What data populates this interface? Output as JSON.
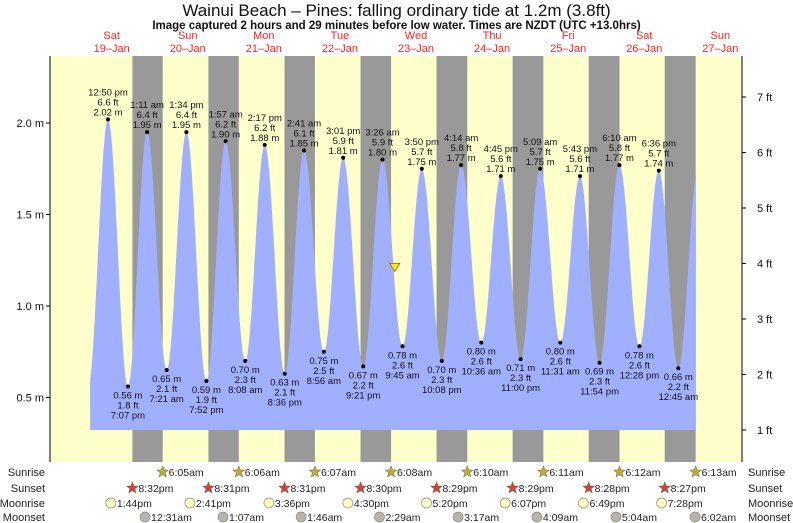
{
  "chart_data": {
    "type": "area",
    "title": "Wainui Beach – Pines: falling  ordinary tide at 1.2m (3.8ft)",
    "subtitle": "Image captured 2 hours and 29 minutes before low water. Times are NZDT (UTC +13.0hrs)",
    "ylabel_left": "m",
    "ylabel_right": "ft",
    "ylim_m": [
      0.26,
      2.42
    ],
    "yticks_m": [
      {
        "v": 2.0,
        "label": "2.0 m"
      },
      {
        "v": 1.5,
        "label": "1.5 m"
      },
      {
        "v": 1.0,
        "label": "1.0 m"
      },
      {
        "v": 0.5,
        "label": "0.5 m"
      }
    ],
    "yticks_ft": [
      {
        "v": 7,
        "label": "7 ft"
      },
      {
        "v": 6,
        "label": "6 ft"
      },
      {
        "v": 5,
        "label": "5 ft"
      },
      {
        "v": 4,
        "label": "4 ft"
      },
      {
        "v": 3,
        "label": "3 ft"
      },
      {
        "v": 2,
        "label": "2 ft"
      },
      {
        "v": 1,
        "label": "1 ft"
      }
    ],
    "days": [
      {
        "dow": "Sat",
        "date": "19–Jan"
      },
      {
        "dow": "Sun",
        "date": "20–Jan"
      },
      {
        "dow": "Mon",
        "date": "21–Jan"
      },
      {
        "dow": "Tue",
        "date": "22–Jan"
      },
      {
        "dow": "Wed",
        "date": "23–Jan"
      },
      {
        "dow": "Thu",
        "date": "24–Jan"
      },
      {
        "dow": "Fri",
        "date": "25–Jan"
      },
      {
        "dow": "Sat",
        "date": "26–Jan"
      },
      {
        "dow": "Sun",
        "date": "27–Jan"
      }
    ],
    "current": {
      "hour": 103.3,
      "m": 1.2
    },
    "extremes": [
      {
        "type": "high",
        "hour": 12.83,
        "time": "12:50 pm",
        "ft": "6.6 ft",
        "m": 2.02
      },
      {
        "type": "low",
        "hour": 19.12,
        "time": "7:07 pm",
        "ft": "1.8 ft",
        "m": 0.56
      },
      {
        "type": "high",
        "hour": 25.18,
        "time": "1:11 am",
        "ft": "6.4 ft",
        "m": 1.95
      },
      {
        "type": "low",
        "hour": 31.35,
        "time": "7:21 am",
        "ft": "2.1 ft",
        "m": 0.65
      },
      {
        "type": "high",
        "hour": 37.57,
        "time": "1:34 pm",
        "ft": "6.4 ft",
        "m": 1.95
      },
      {
        "type": "low",
        "hour": 43.87,
        "time": "7:52 pm",
        "ft": "1.9 ft",
        "m": 0.59
      },
      {
        "type": "high",
        "hour": 49.95,
        "time": "1:57 am",
        "ft": "6.2 ft",
        "m": 1.9
      },
      {
        "type": "low",
        "hour": 56.13,
        "time": "8:08 am",
        "ft": "2.3 ft",
        "m": 0.7
      },
      {
        "type": "high",
        "hour": 62.28,
        "time": "2:17 pm",
        "ft": "6.2 ft",
        "m": 1.88
      },
      {
        "type": "low",
        "hour": 68.6,
        "time": "8:36 pm",
        "ft": "2.1 ft",
        "m": 0.63
      },
      {
        "type": "high",
        "hour": 74.68,
        "time": "2:41 am",
        "ft": "6.1 ft",
        "m": 1.85
      },
      {
        "type": "low",
        "hour": 80.93,
        "time": "8:56 am",
        "ft": "2.5 ft",
        "m": 0.75
      },
      {
        "type": "high",
        "hour": 87.02,
        "time": "3:01 pm",
        "ft": "5.9 ft",
        "m": 1.81
      },
      {
        "type": "low",
        "hour": 93.35,
        "time": "9:21 pm",
        "ft": "2.2 ft",
        "m": 0.67
      },
      {
        "type": "high",
        "hour": 99.43,
        "time": "3:26 am",
        "ft": "5.9 ft",
        "m": 1.8
      },
      {
        "type": "low",
        "hour": 105.75,
        "time": "9:45 am",
        "ft": "2.6 ft",
        "m": 0.78
      },
      {
        "type": "high",
        "hour": 111.83,
        "time": "3:50 pm",
        "ft": "5.7 ft",
        "m": 1.75
      },
      {
        "type": "low",
        "hour": 118.13,
        "time": "10:08 pm",
        "ft": "2.3 ft",
        "m": 0.7
      },
      {
        "type": "high",
        "hour": 124.23,
        "time": "4:14 am",
        "ft": "5.8 ft",
        "m": 1.77
      },
      {
        "type": "low",
        "hour": 130.6,
        "time": "10:36 am",
        "ft": "2.6 ft",
        "m": 0.8
      },
      {
        "type": "high",
        "hour": 136.75,
        "time": "4:45 pm",
        "ft": "5.6 ft",
        "m": 1.71
      },
      {
        "type": "low",
        "hour": 143.0,
        "time": "11:00 pm",
        "ft": "2.3 ft",
        "m": 0.71
      },
      {
        "type": "high",
        "hour": 149.15,
        "time": "5:09 am",
        "ft": "5.7 ft",
        "m": 1.75
      },
      {
        "type": "low",
        "hour": 155.52,
        "time": "11:31 am",
        "ft": "2.6 ft",
        "m": 0.8
      },
      {
        "type": "high",
        "hour": 161.72,
        "time": "5:43 pm",
        "ft": "5.6 ft",
        "m": 1.71
      },
      {
        "type": "low",
        "hour": 167.9,
        "time": "11:54 pm",
        "ft": "2.3 ft",
        "m": 0.69
      },
      {
        "type": "high",
        "hour": 174.17,
        "time": "6:10 am",
        "ft": "5.8 ft",
        "m": 1.77
      },
      {
        "type": "low",
        "hour": 180.47,
        "time": "12:28 pm",
        "ft": "2.6 ft",
        "m": 0.78
      },
      {
        "type": "high",
        "hour": 186.6,
        "time": "6:36 pm",
        "ft": "5.7 ft",
        "m": 1.74
      },
      {
        "type": "low",
        "hour": 192.75,
        "time": "12:45 am",
        "ft": "2.2 ft",
        "m": 0.66
      }
    ],
    "sunrise": [
      {
        "hour": 30.08,
        "label": "6:05am"
      },
      {
        "hour": 54.1,
        "label": "6:06am"
      },
      {
        "hour": 78.12,
        "label": "6:07am"
      },
      {
        "hour": 102.13,
        "label": "6:08am"
      },
      {
        "hour": 126.17,
        "label": "6:10am"
      },
      {
        "hour": 150.18,
        "label": "6:11am"
      },
      {
        "hour": 174.2,
        "label": "6:12am"
      },
      {
        "hour": 198.22,
        "label": "6:13am"
      }
    ],
    "sunset": [
      {
        "hour": 20.53,
        "label": "8:32pm"
      },
      {
        "hour": 44.52,
        "label": "8:31pm"
      },
      {
        "hour": 68.52,
        "label": "8:31pm"
      },
      {
        "hour": 92.5,
        "label": "8:30pm"
      },
      {
        "hour": 116.48,
        "label": "8:29pm"
      },
      {
        "hour": 140.48,
        "label": "8:29pm"
      },
      {
        "hour": 164.47,
        "label": "8:28pm"
      },
      {
        "hour": 188.45,
        "label": "8:27pm"
      }
    ],
    "moonrise": [
      {
        "hour": 13.73,
        "label": "1:44pm"
      },
      {
        "hour": 38.68,
        "label": "2:41pm"
      },
      {
        "hour": 63.6,
        "label": "3:36pm"
      },
      {
        "hour": 88.5,
        "label": "4:30pm"
      },
      {
        "hour": 113.33,
        "label": "5:20pm"
      },
      {
        "hour": 138.12,
        "label": "6:07pm"
      },
      {
        "hour": 162.82,
        "label": "6:49pm"
      },
      {
        "hour": 187.47,
        "label": "7:28pm"
      }
    ],
    "moonset": [
      {
        "hour": 24.52,
        "label": "12:31am"
      },
      {
        "hour": 49.12,
        "label": "1:07am"
      },
      {
        "hour": 73.77,
        "label": "1:46am"
      },
      {
        "hour": 98.48,
        "label": "2:29am"
      },
      {
        "hour": 123.28,
        "label": "3:17am"
      },
      {
        "hour": 148.15,
        "label": "4:09am"
      },
      {
        "hour": 173.07,
        "label": "5:04am"
      },
      {
        "hour": 198.03,
        "label": "6:02am"
      }
    ],
    "row_labels": {
      "sunrise": "Sunrise",
      "sunset": "Sunset",
      "moonrise": "Moonrise",
      "moonset": "Moonset"
    }
  },
  "colors": {
    "day": "#ffffcc",
    "night": "#999999",
    "water": "#a0b0ff",
    "daylabel": "#ff2020",
    "sunrise": "#b8b030",
    "sunset": "#d84030",
    "moonrise": "#ffffc0",
    "moonset": "#b8b4a8"
  }
}
